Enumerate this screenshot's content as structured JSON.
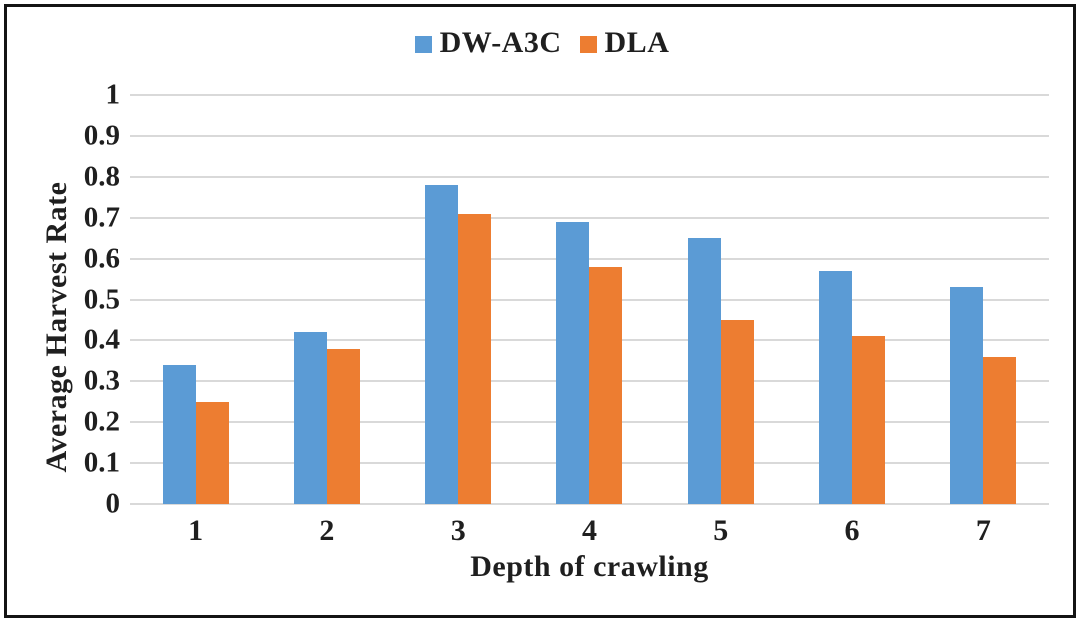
{
  "chart_data": {
    "type": "bar",
    "categories": [
      "1",
      "2",
      "3",
      "4",
      "5",
      "6",
      "7"
    ],
    "series": [
      {
        "name": "DW-A3C",
        "color": "#5B9BD5",
        "values": [
          0.34,
          0.42,
          0.78,
          0.69,
          0.65,
          0.57,
          0.53
        ]
      },
      {
        "name": "DLA",
        "color": "#ED7D31",
        "values": [
          0.25,
          0.38,
          0.71,
          0.58,
          0.45,
          0.41,
          0.36
        ]
      }
    ],
    "xlabel": "Depth of crawling",
    "ylabel": "Average Harvest Rate",
    "ylim": [
      0,
      1
    ],
    "yticks": [
      "0",
      "0.1",
      "0.2",
      "0.3",
      "0.4",
      "0.5",
      "0.6",
      "0.7",
      "0.8",
      "0.9",
      "1"
    ],
    "grid": "horizontal",
    "legend_position": "top-center",
    "colors": {
      "gridline": "#D9D9D9",
      "text": "#1F1F1F",
      "frame": "#141414",
      "background": "#FFFFFF"
    }
  }
}
